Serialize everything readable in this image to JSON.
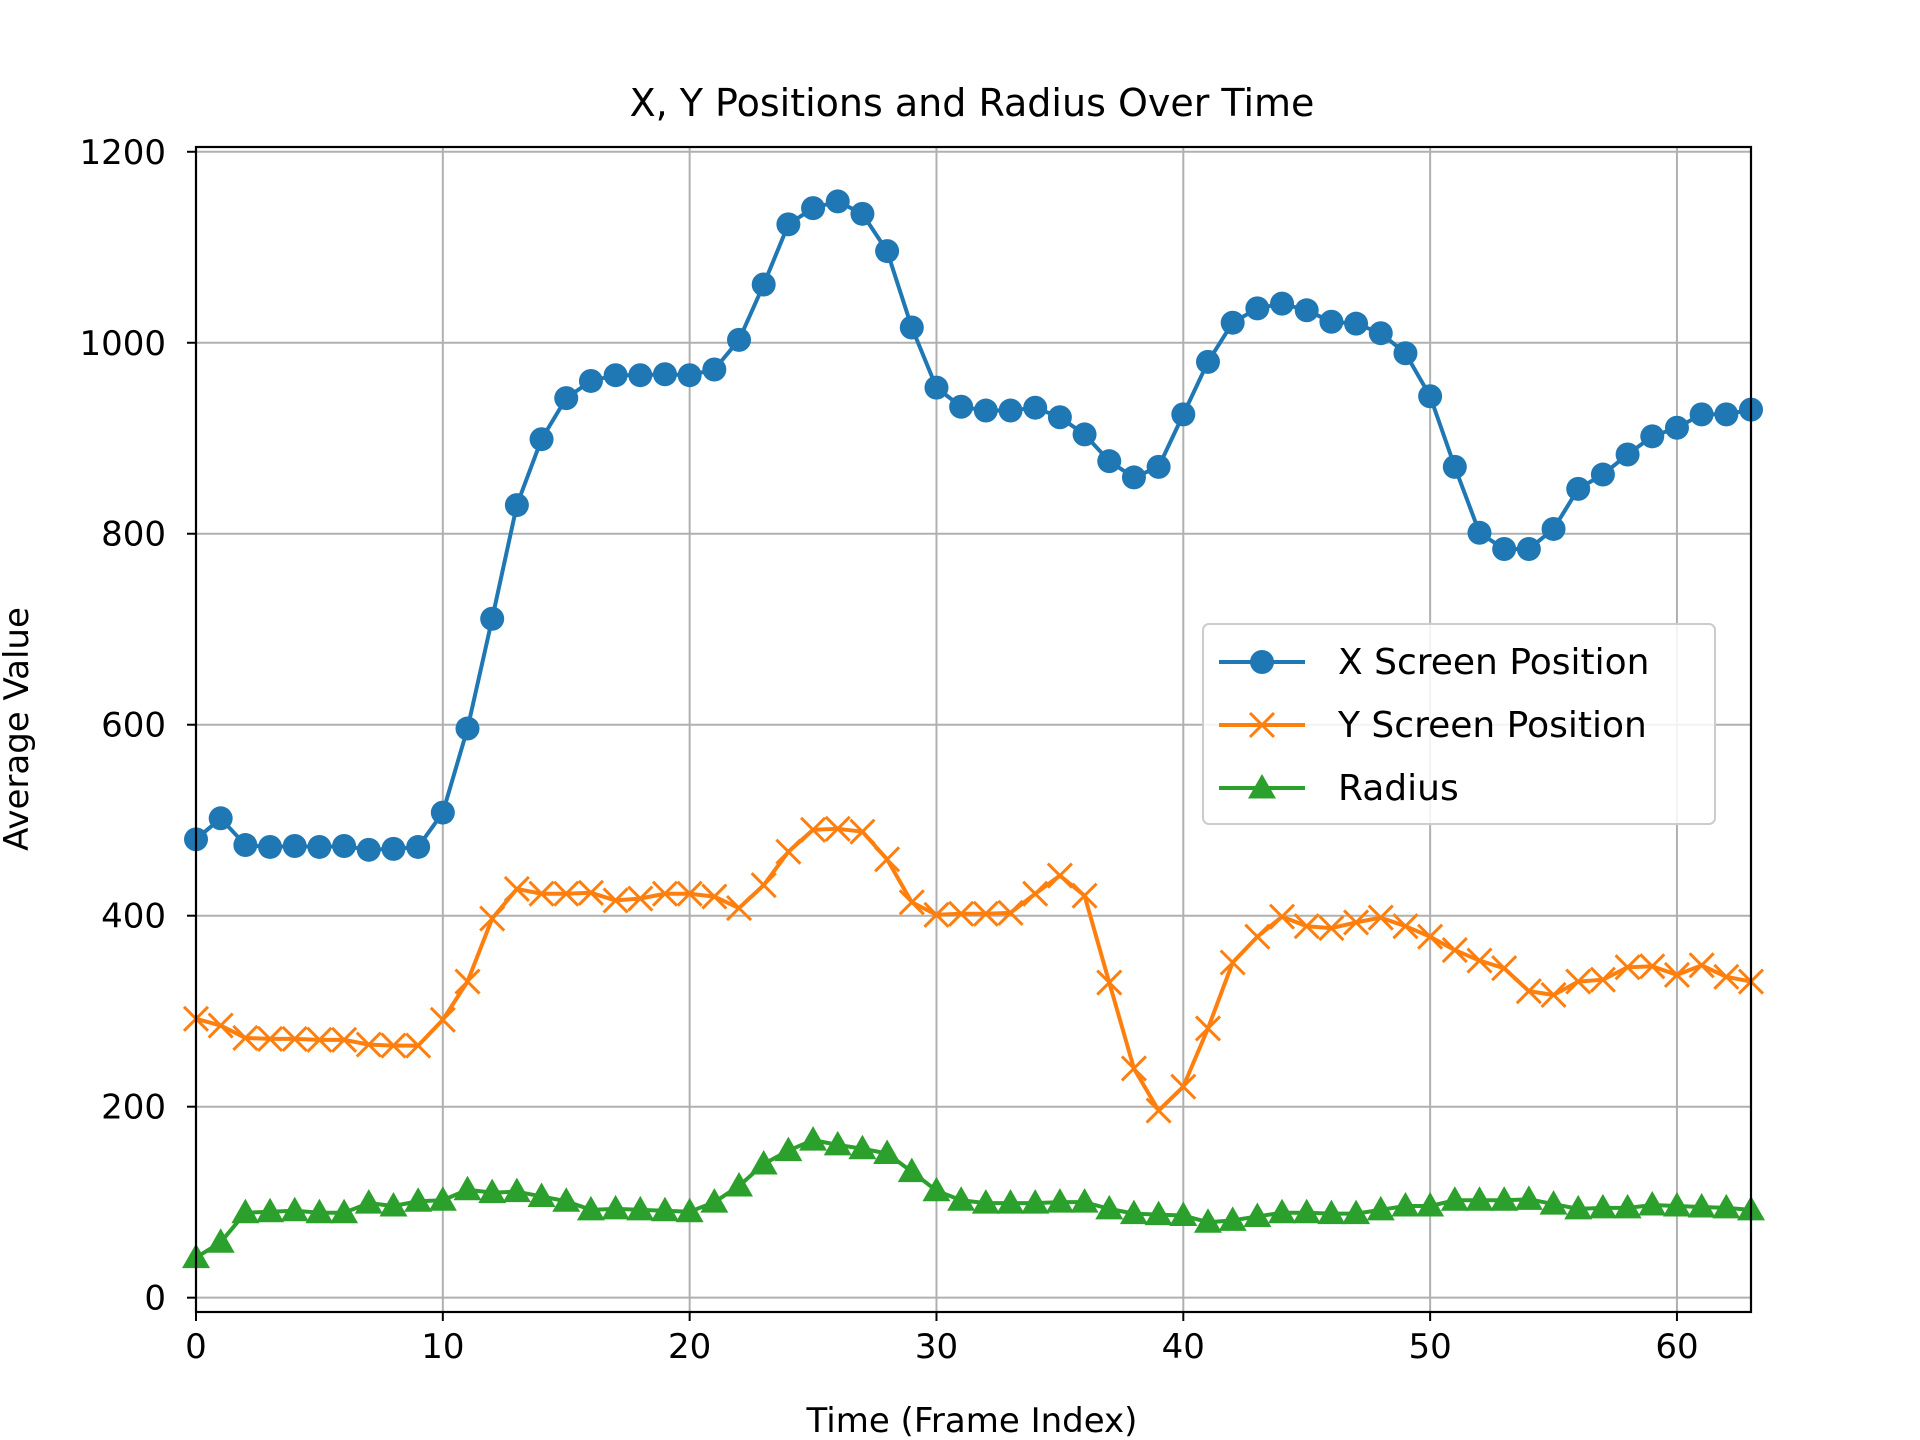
{
  "chart_data": {
    "type": "line",
    "title": "X, Y Positions and Radius Over Time",
    "xlabel": "Time (Frame Index)",
    "ylabel": "Average Value",
    "xlim": [
      0,
      63
    ],
    "ylim": [
      -15,
      1205
    ],
    "xticks": [
      0,
      10,
      20,
      30,
      40,
      50,
      60
    ],
    "yticks": [
      0,
      200,
      400,
      600,
      800,
      1000,
      1200
    ],
    "grid": true,
    "legend": "center-right",
    "x": [
      0,
      1,
      2,
      3,
      4,
      5,
      6,
      7,
      8,
      9,
      10,
      11,
      12,
      13,
      14,
      15,
      16,
      17,
      18,
      19,
      20,
      21,
      22,
      23,
      24,
      25,
      26,
      27,
      28,
      29,
      30,
      31,
      32,
      33,
      34,
      35,
      36,
      37,
      38,
      39,
      40,
      41,
      42,
      43,
      44,
      45,
      46,
      47,
      48,
      49,
      50,
      51,
      52,
      53,
      54,
      55,
      56,
      57,
      58,
      59,
      60,
      61,
      62,
      63
    ],
    "series": [
      {
        "name": "X Screen Position",
        "color": "#1f77b4",
        "marker": "circle",
        "values": [
          480,
          502,
          474,
          472,
          473,
          472,
          473,
          469,
          470,
          472,
          508,
          596,
          711,
          830,
          899,
          942,
          960,
          966,
          966,
          967,
          966,
          972,
          1003,
          1061,
          1124,
          1141,
          1148,
          1135,
          1096,
          1016,
          953,
          933,
          929,
          929,
          932,
          922,
          904,
          876,
          859,
          870,
          925,
          980,
          1021,
          1036,
          1041,
          1034,
          1022,
          1020,
          1010,
          989,
          944,
          870,
          801,
          784,
          784,
          805,
          847,
          862,
          883,
          902,
          911,
          925,
          925,
          930
        ]
      },
      {
        "name": "Y Screen Position",
        "color": "#ff7f0e",
        "marker": "x",
        "values": [
          292,
          285,
          272,
          271,
          271,
          270,
          270,
          265,
          264,
          264,
          291,
          331,
          397,
          428,
          423,
          423,
          424,
          416,
          418,
          423,
          423,
          420,
          408,
          432,
          467,
          490,
          491,
          488,
          459,
          414,
          401,
          402,
          402,
          403,
          423,
          442,
          421,
          330,
          240,
          196,
          221,
          282,
          351,
          378,
          399,
          389,
          387,
          393,
          398,
          389,
          378,
          364,
          353,
          345,
          321,
          317,
          331,
          333,
          346,
          347,
          338,
          348,
          336,
          331
        ]
      },
      {
        "name": "Radius",
        "color": "#2ca02c",
        "marker": "triangle",
        "values": [
          42,
          58,
          89,
          90,
          91,
          89,
          89,
          99,
          96,
          101,
          102,
          113,
          110,
          111,
          106,
          101,
          92,
          93,
          92,
          91,
          90,
          100,
          117,
          140,
          154,
          165,
          160,
          156,
          151,
          132,
          112,
          102,
          99,
          99,
          99,
          100,
          100,
          93,
          88,
          87,
          86,
          79,
          81,
          85,
          89,
          89,
          88,
          88,
          92,
          96,
          96,
          102,
          102,
          102,
          103,
          98,
          93,
          94,
          94,
          97,
          96,
          95,
          94,
          92
        ]
      }
    ]
  }
}
